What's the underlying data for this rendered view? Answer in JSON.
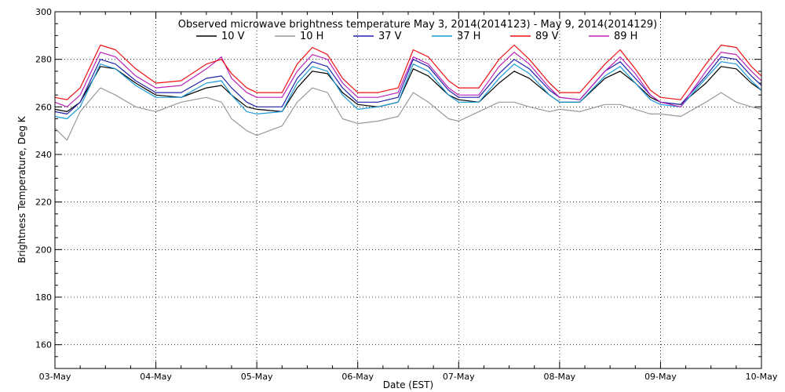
{
  "chart_data": {
    "type": "line",
    "title": "Observed microwave brightness temperature May  3, 2014(2014123) - May  9, 2014(2014129)",
    "xlabel": "Date (EST)",
    "ylabel": "Brightness Temperature, Deg K",
    "xlim": [
      "03-May",
      "10-May"
    ],
    "ylim": [
      150,
      300
    ],
    "grid": true,
    "legend_position": "top",
    "x_ticks": [
      "03-May",
      "04-May",
      "05-May",
      "06-May",
      "07-May",
      "08-May",
      "09-May",
      "10-May"
    ],
    "y_ticks": [
      160,
      180,
      200,
      220,
      240,
      260,
      280,
      300
    ],
    "x": [
      0.0,
      0.12,
      0.25,
      0.45,
      0.6,
      0.8,
      1.0,
      1.25,
      1.5,
      1.65,
      1.75,
      1.9,
      2.0,
      2.25,
      2.4,
      2.55,
      2.7,
      2.85,
      3.0,
      3.2,
      3.4,
      3.55,
      3.7,
      3.9,
      4.0,
      4.2,
      4.4,
      4.55,
      4.7,
      4.9,
      5.0,
      5.2,
      5.45,
      5.6,
      5.75,
      5.9,
      6.0,
      6.2,
      6.45,
      6.6,
      6.75,
      6.9,
      7.0
    ],
    "series": [
      {
        "name": "10 V",
        "color": "#000000",
        "values": [
          259,
          258,
          262,
          277,
          276,
          270,
          265,
          264,
          268,
          269,
          265,
          260,
          259,
          258,
          268,
          275,
          274,
          266,
          261,
          260,
          262,
          276,
          273,
          265,
          263,
          262,
          270,
          275,
          272,
          265,
          262,
          262,
          272,
          275,
          270,
          264,
          262,
          261,
          270,
          277,
          276,
          270,
          267
        ]
      },
      {
        "name": "10 H",
        "color": "#999999",
        "values": [
          251,
          246,
          258,
          268,
          265,
          260,
          258,
          262,
          264,
          262,
          255,
          250,
          248,
          252,
          262,
          268,
          266,
          255,
          253,
          254,
          256,
          266,
          262,
          255,
          254,
          258,
          262,
          262,
          260,
          258,
          259,
          258,
          261,
          261,
          259,
          257,
          257,
          256,
          262,
          266,
          262,
          260,
          259
        ]
      },
      {
        "name": "37 V",
        "color": "#2222aa",
        "values": [
          258,
          257,
          262,
          280,
          278,
          271,
          266,
          266,
          272,
          273,
          268,
          262,
          260,
          260,
          272,
          279,
          277,
          268,
          262,
          262,
          264,
          280,
          277,
          267,
          264,
          264,
          274,
          280,
          276,
          267,
          264,
          263,
          275,
          279,
          272,
          265,
          262,
          261,
          273,
          281,
          280,
          273,
          269
        ]
      },
      {
        "name": "37 H",
        "color": "#1a9ad6",
        "values": [
          256,
          255,
          260,
          278,
          276,
          269,
          264,
          264,
          270,
          271,
          265,
          258,
          257,
          258,
          270,
          277,
          275,
          265,
          259,
          260,
          262,
          278,
          275,
          265,
          262,
          262,
          272,
          278,
          274,
          265,
          262,
          262,
          273,
          277,
          270,
          263,
          261,
          260,
          272,
          279,
          278,
          271,
          267
        ]
      },
      {
        "name": "89 V",
        "color": "#ee1111",
        "values": [
          264,
          263,
          268,
          286,
          284,
          276,
          270,
          271,
          278,
          280,
          274,
          268,
          266,
          266,
          278,
          285,
          282,
          272,
          266,
          266,
          268,
          284,
          281,
          271,
          268,
          268,
          280,
          286,
          280,
          270,
          266,
          266,
          278,
          284,
          276,
          267,
          264,
          263,
          278,
          286,
          285,
          277,
          273
        ]
      },
      {
        "name": "89 H",
        "color": "#bb22bb",
        "values": [
          262,
          260,
          265,
          283,
          281,
          273,
          268,
          269,
          276,
          281,
          272,
          266,
          264,
          264,
          275,
          282,
          280,
          270,
          264,
          264,
          266,
          281,
          278,
          268,
          265,
          265,
          277,
          283,
          278,
          268,
          264,
          263,
          275,
          281,
          274,
          265,
          262,
          260,
          275,
          283,
          282,
          275,
          271
        ]
      }
    ]
  }
}
